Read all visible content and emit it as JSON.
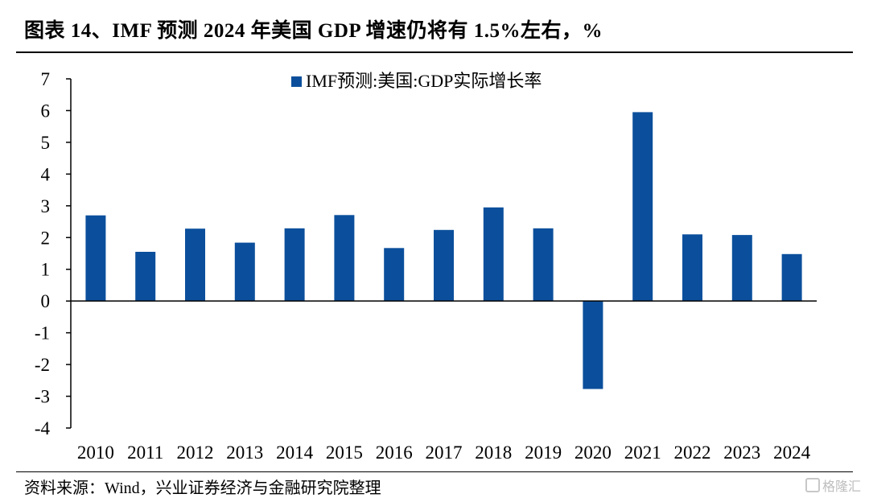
{
  "title": "图表 14、IMF 预测 2024 年美国 GDP 增速仍将有 1.5%左右，%",
  "source": "资料来源：Wind，兴业证券经济与金融研究院整理",
  "watermark": "格隆汇",
  "colors": {
    "bar": "#0b4f9c",
    "axis": "#000000"
  },
  "chart_data": {
    "type": "bar",
    "title": "",
    "xlabel": "",
    "ylabel": "",
    "legend": {
      "label": "IMF预测:美国:GDP实际增长率",
      "position": "top-center"
    },
    "ylim": [
      -4,
      7
    ],
    "yticks": [
      7,
      6,
      5,
      4,
      3,
      2,
      1,
      0,
      -1,
      -2,
      -3,
      -4
    ],
    "categories": [
      "2010",
      "2011",
      "2012",
      "2013",
      "2014",
      "2015",
      "2016",
      "2017",
      "2018",
      "2019",
      "2020",
      "2021",
      "2022",
      "2023",
      "2024"
    ],
    "series": [
      {
        "name": "IMF预测:美国:GDP实际增长率",
        "values": [
          2.7,
          1.55,
          2.28,
          1.84,
          2.29,
          2.71,
          1.67,
          2.24,
          2.95,
          2.29,
          -2.77,
          5.95,
          2.1,
          2.08,
          1.48
        ]
      }
    ]
  }
}
